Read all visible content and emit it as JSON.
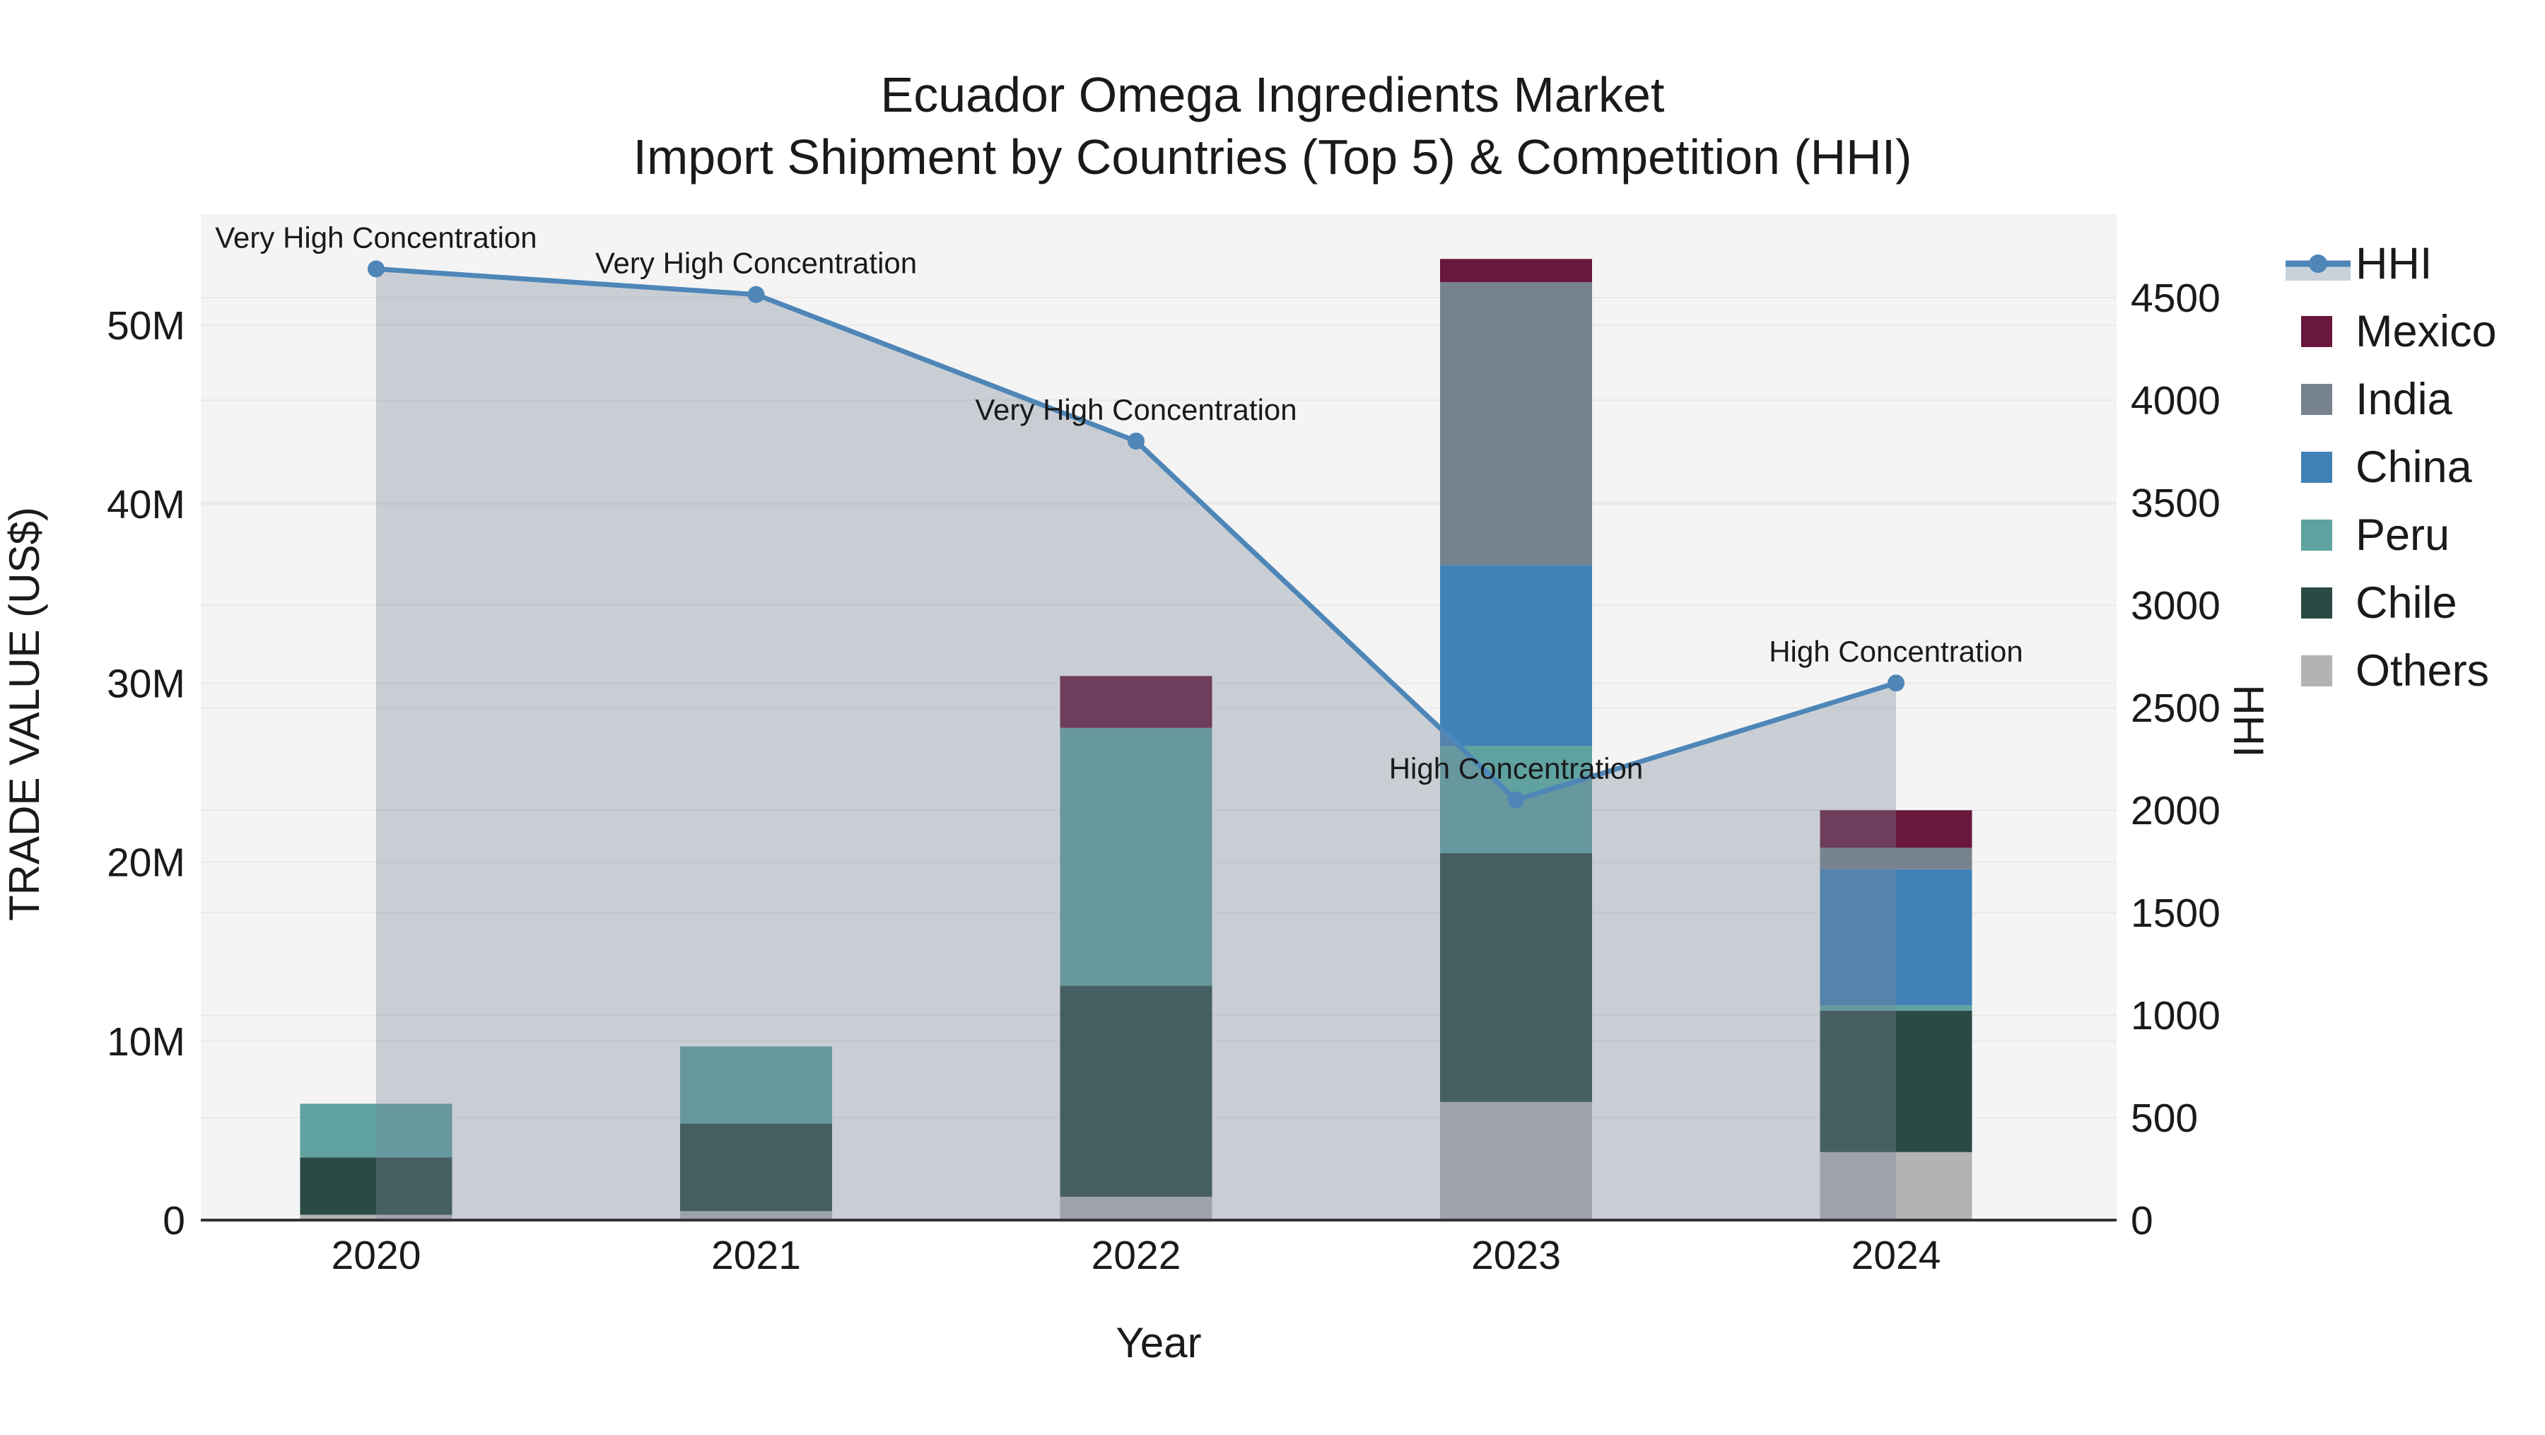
{
  "title": {
    "line1": "Ecuador Omega Ingredients Market",
    "line2": "Import Shipment by Countries (Top 5) & Competition (HHI)"
  },
  "axes": {
    "x_title": "Year",
    "y_left_title": "TRADE VALUE (US$)",
    "y_right_title": "HHI",
    "y_left_ticks": [
      {
        "value": 0,
        "label": "0"
      },
      {
        "value": 10,
        "label": "10M"
      },
      {
        "value": 20,
        "label": "20M"
      },
      {
        "value": 30,
        "label": "30M"
      },
      {
        "value": 40,
        "label": "40M"
      },
      {
        "value": 50,
        "label": "50M"
      }
    ],
    "y_right_ticks": [
      {
        "value": 0,
        "label": "0"
      },
      {
        "value": 500,
        "label": "500"
      },
      {
        "value": 1000,
        "label": "1000"
      },
      {
        "value": 1500,
        "label": "1500"
      },
      {
        "value": 2000,
        "label": "2000"
      },
      {
        "value": 2500,
        "label": "2500"
      },
      {
        "value": 3000,
        "label": "3000"
      },
      {
        "value": 3500,
        "label": "3500"
      },
      {
        "value": 4000,
        "label": "4000"
      },
      {
        "value": 4500,
        "label": "4500"
      }
    ]
  },
  "legend": [
    {
      "id": "hhi",
      "label": "HHI",
      "color": "#4E86B8",
      "type": "line"
    },
    {
      "id": "mexico",
      "label": "Mexico",
      "color": "#69183C",
      "type": "swatch"
    },
    {
      "id": "india",
      "label": "India",
      "color": "#76838F",
      "type": "swatch"
    },
    {
      "id": "china",
      "label": "China",
      "color": "#4181B5",
      "type": "swatch"
    },
    {
      "id": "peru",
      "label": "Peru",
      "color": "#5FA2A0",
      "type": "swatch"
    },
    {
      "id": "chile",
      "label": "Chile",
      "color": "#2A4A45",
      "type": "swatch"
    },
    {
      "id": "others",
      "label": "Others",
      "color": "#B3B3B3",
      "type": "swatch"
    }
  ],
  "chart_data": {
    "type": "bar+line",
    "title": "Ecuador Omega Ingredients Market — Import Shipment by Countries (Top 5) & Competition (HHI)",
    "categories": [
      "2020",
      "2021",
      "2022",
      "2023",
      "2024"
    ],
    "bar_value_unit": "million US$",
    "stack_order_bottom_to_top": [
      "Others",
      "Chile",
      "Peru",
      "China",
      "India",
      "Mexico"
    ],
    "series": [
      {
        "name": "Others",
        "color": "#B3B3B3",
        "values": [
          0.3,
          0.5,
          1.3,
          6.6,
          3.8
        ]
      },
      {
        "name": "Chile",
        "color": "#2A4A45",
        "values": [
          3.2,
          4.9,
          11.8,
          13.9,
          7.9
        ]
      },
      {
        "name": "Peru",
        "color": "#5FA2A0",
        "values": [
          3.0,
          4.3,
          14.4,
          6.0,
          0.3
        ]
      },
      {
        "name": "China",
        "color": "#4181B5",
        "values": [
          0,
          0,
          0,
          10.1,
          7.6
        ]
      },
      {
        "name": "India",
        "color": "#76838F",
        "values": [
          0,
          0,
          0,
          15.8,
          1.2
        ]
      },
      {
        "name": "Mexico",
        "color": "#69183C",
        "values": [
          0,
          0,
          2.9,
          1.3,
          2.1
        ]
      }
    ],
    "line": {
      "name": "HHI",
      "color": "#4E86B8",
      "fill_color": "rgba(119,136,153,0.35)",
      "values": [
        4640,
        4515,
        3800,
        2050,
        2620
      ]
    },
    "annotations": [
      {
        "text": "Very High Concentration",
        "category": "2020"
      },
      {
        "text": "Very High Concentration",
        "category": "2021"
      },
      {
        "text": "Very High Concentration",
        "category": "2022"
      },
      {
        "text": "High Concentration",
        "category": "2023"
      },
      {
        "text": "High Concentration",
        "category": "2024"
      }
    ],
    "ylim_left": [
      0,
      56.2
    ],
    "ylim_right": [
      0,
      4907
    ],
    "xlabel": "Year",
    "ylabel_left": "TRADE VALUE (US$)",
    "ylabel_right": "HHI",
    "grid": true,
    "legend_position": "right",
    "plot_bg": "#F4F4F4",
    "grid_color": "#E9E9E9",
    "axis_line_color": "#333333"
  }
}
